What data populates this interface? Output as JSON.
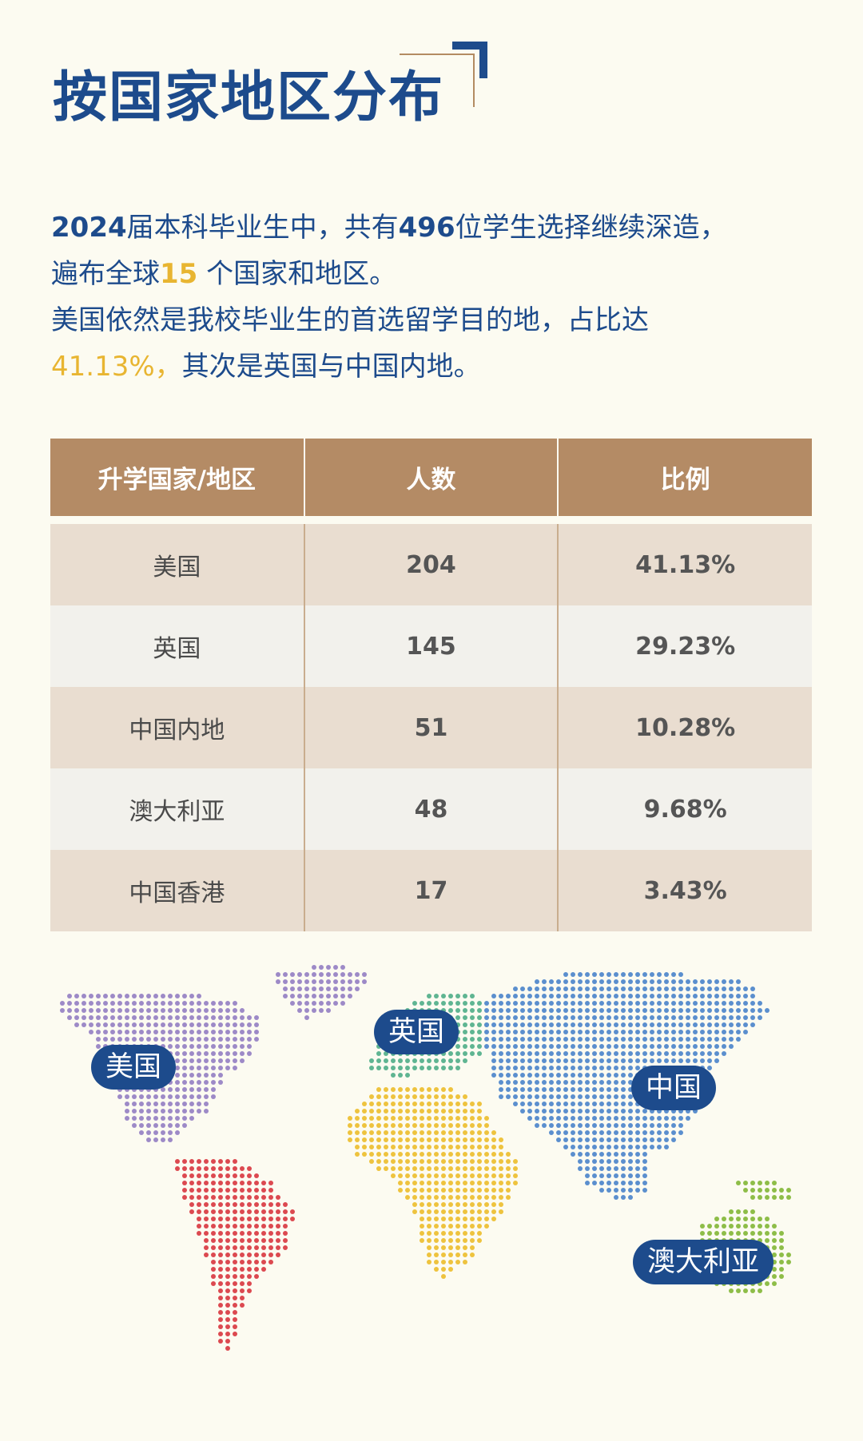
{
  "title": "按国家地区分布",
  "intro": {
    "p1_a": "2024",
    "p1_b": "届本科毕业生中，共有",
    "p1_c": "496",
    "p1_d": "位学生选择继续深造，",
    "p2_a": "遍布全球",
    "p2_b": "15",
    "p2_c": " 个国家和地区。",
    "p3": "美国依然是我校毕业生的首选留学目的地，占比达",
    "p4_a": "41.13%，",
    "p4_b": "其次是英国与中国内地。"
  },
  "table": {
    "headers": [
      "升学国家/地区",
      "人数",
      "比例"
    ],
    "rows": [
      {
        "region": "美国",
        "count": "204",
        "ratio": "41.13%"
      },
      {
        "region": "英国",
        "count": "145",
        "ratio": "29.23%"
      },
      {
        "region": "中国内地",
        "count": "51",
        "ratio": "10.28%"
      },
      {
        "region": "澳大利亚",
        "count": "48",
        "ratio": "9.68%"
      },
      {
        "region": "中国香港",
        "count": "17",
        "ratio": "3.43%"
      }
    ]
  },
  "map": {
    "labels": [
      "美国",
      "英国",
      "中国",
      "澳大利亚"
    ],
    "colors": {
      "north_america": "#9d8ac7",
      "south_america": "#dc4950",
      "europe": "#5fb592",
      "africa": "#eec33e",
      "asia": "#5b8fce",
      "oceania": "#8ebd48"
    }
  },
  "colors": {
    "accent": "#1d4b8c",
    "highlight": "#e8b531",
    "table_header": "#b48b65",
    "background": "#fcfbf1"
  }
}
